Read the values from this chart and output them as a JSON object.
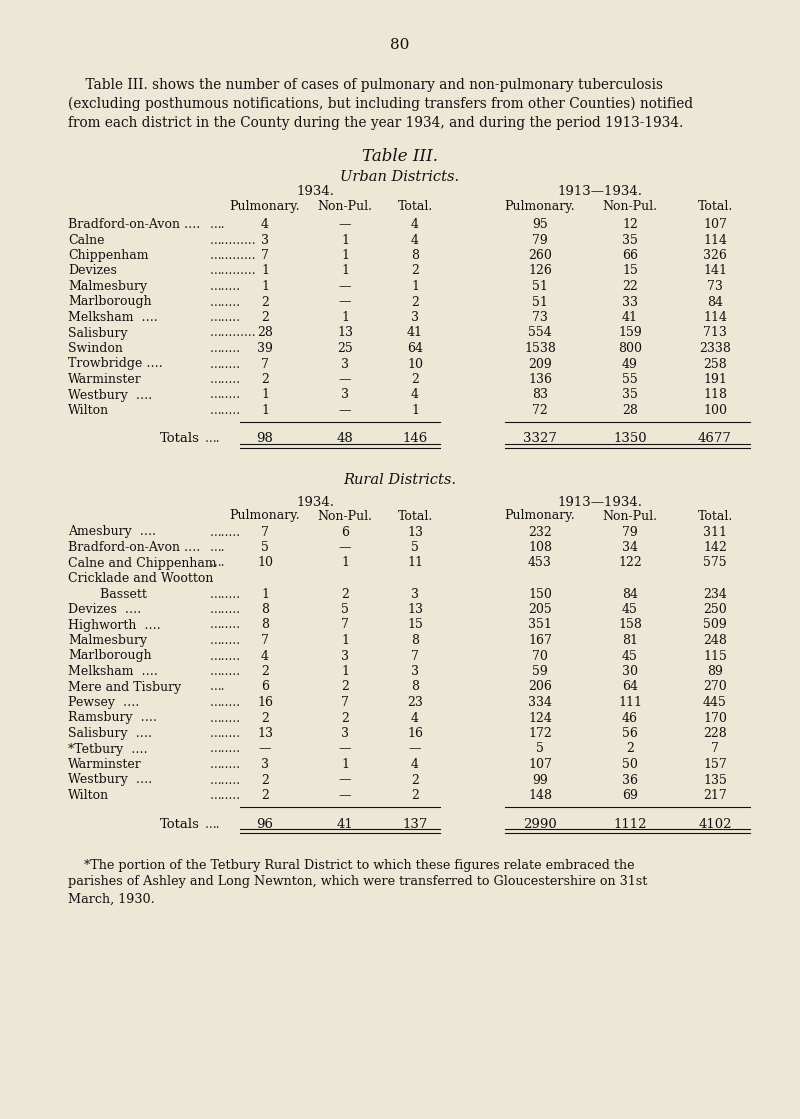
{
  "page_number": "80",
  "intro_line1": "    Table III. shows the number of cases of pulmonary and non-pulmonary tuberculosis",
  "intro_line2": "(excluding posthumous notifications, but including transfers from other Counties) notified",
  "intro_line3": "from each district in the County during the year 1934, and during the period 1913-1934.",
  "table_title": "Table III.",
  "urban_header": "Urban Districts.",
  "rural_header": "Rural Districts.",
  "bg_color": "#ede8d5",
  "text_color": "#111111",
  "urban_districts": [
    [
      "Bradford-on-Avon ….",
      "….",
      "4",
      "—",
      "4",
      "95",
      "12",
      "107"
    ],
    [
      "Calne",
      "….….….",
      "3",
      "1",
      "4",
      "79",
      "35",
      "114"
    ],
    [
      "Chippenham",
      "….….….",
      "7",
      "1",
      "8",
      "260",
      "66",
      "326"
    ],
    [
      "Devizes",
      "….….….",
      "1",
      "1",
      "2",
      "126",
      "15",
      "141"
    ],
    [
      "Malmesbury",
      "….….",
      "1",
      "—",
      "1",
      "51",
      "22",
      "73"
    ],
    [
      "Marlborough",
      "….….",
      "2",
      "—",
      "2",
      "51",
      "33",
      "84"
    ],
    [
      "Melksham  ….",
      "….….",
      "2",
      "1",
      "3",
      "73",
      "41",
      "114"
    ],
    [
      "Salisbury",
      "….….….",
      "28",
      "13",
      "41",
      "554",
      "159",
      "713"
    ],
    [
      "Swindon",
      "….….",
      "39",
      "25",
      "64",
      "1538",
      "800",
      "2338"
    ],
    [
      "Trowbridge ….",
      "….….",
      "7",
      "3",
      "10",
      "209",
      "49",
      "258"
    ],
    [
      "Warminster",
      "….….",
      "2",
      "—",
      "2",
      "136",
      "55",
      "191"
    ],
    [
      "Westbury  ….",
      "….….",
      "1",
      "3",
      "4",
      "83",
      "35",
      "118"
    ],
    [
      "Wilton",
      "….….",
      "1",
      "—",
      "1",
      "72",
      "28",
      "100"
    ]
  ],
  "urban_totals": [
    "Totals",
    "….",
    "98",
    "48",
    "146",
    "3327",
    "1350",
    "4677"
  ],
  "rural_districts": [
    [
      "Amesbury  ….",
      "….….",
      "7",
      "6",
      "13",
      "232",
      "79",
      "311"
    ],
    [
      "Bradford-on-Avon ….",
      "….",
      "5",
      "—",
      "5",
      "108",
      "34",
      "142"
    ],
    [
      "Calne and Chippenham",
      "….",
      "10",
      "1",
      "11",
      "453",
      "122",
      "575"
    ],
    [
      "Cricklade and Wootton",
      "",
      "",
      "",
      "",
      "",
      "",
      ""
    ],
    [
      "        Bassett",
      "….….",
      "1",
      "2",
      "3",
      "150",
      "84",
      "234"
    ],
    [
      "Devizes  ….",
      "….….",
      "8",
      "5",
      "13",
      "205",
      "45",
      "250"
    ],
    [
      "Highworth  ….",
      "….….",
      "8",
      "7",
      "15",
      "351",
      "158",
      "509"
    ],
    [
      "Malmesbury",
      "….….",
      "7",
      "1",
      "8",
      "167",
      "81",
      "248"
    ],
    [
      "Marlborough",
      "….….",
      "4",
      "3",
      "7",
      "70",
      "45",
      "115"
    ],
    [
      "Melksham  ….",
      "….….",
      "2",
      "1",
      "3",
      "59",
      "30",
      "89"
    ],
    [
      "Mere and Tisbury",
      "….",
      "6",
      "2",
      "8",
      "206",
      "64",
      "270"
    ],
    [
      "Pewsey  ….",
      "….….",
      "16",
      "7",
      "23",
      "334",
      "111",
      "445"
    ],
    [
      "Ramsbury  ….",
      "….….",
      "2",
      "2",
      "4",
      "124",
      "46",
      "170"
    ],
    [
      "Salisbury  ….",
      "….….",
      "13",
      "3",
      "16",
      "172",
      "56",
      "228"
    ],
    [
      "*Tetbury  ….",
      "….….",
      "—",
      "—",
      "—",
      "5",
      "2",
      "7"
    ],
    [
      "Warminster",
      "….….",
      "3",
      "1",
      "4",
      "107",
      "50",
      "157"
    ],
    [
      "Westbury  ….",
      "….….",
      "2",
      "—",
      "2",
      "99",
      "36",
      "135"
    ],
    [
      "Wilton",
      "….….",
      "2",
      "—",
      "2",
      "148",
      "69",
      "217"
    ]
  ],
  "rural_totals": [
    "Totals",
    "….",
    "96",
    "41",
    "137",
    "2990",
    "1112",
    "4102"
  ],
  "footnote_lines": [
    "    *The portion of the Tetbury Rural District to which these figures relate embraced the",
    "parishes of Ashley and Long Newnton, which were transferred to Gloucestershire on 31st",
    "March, 1930."
  ]
}
